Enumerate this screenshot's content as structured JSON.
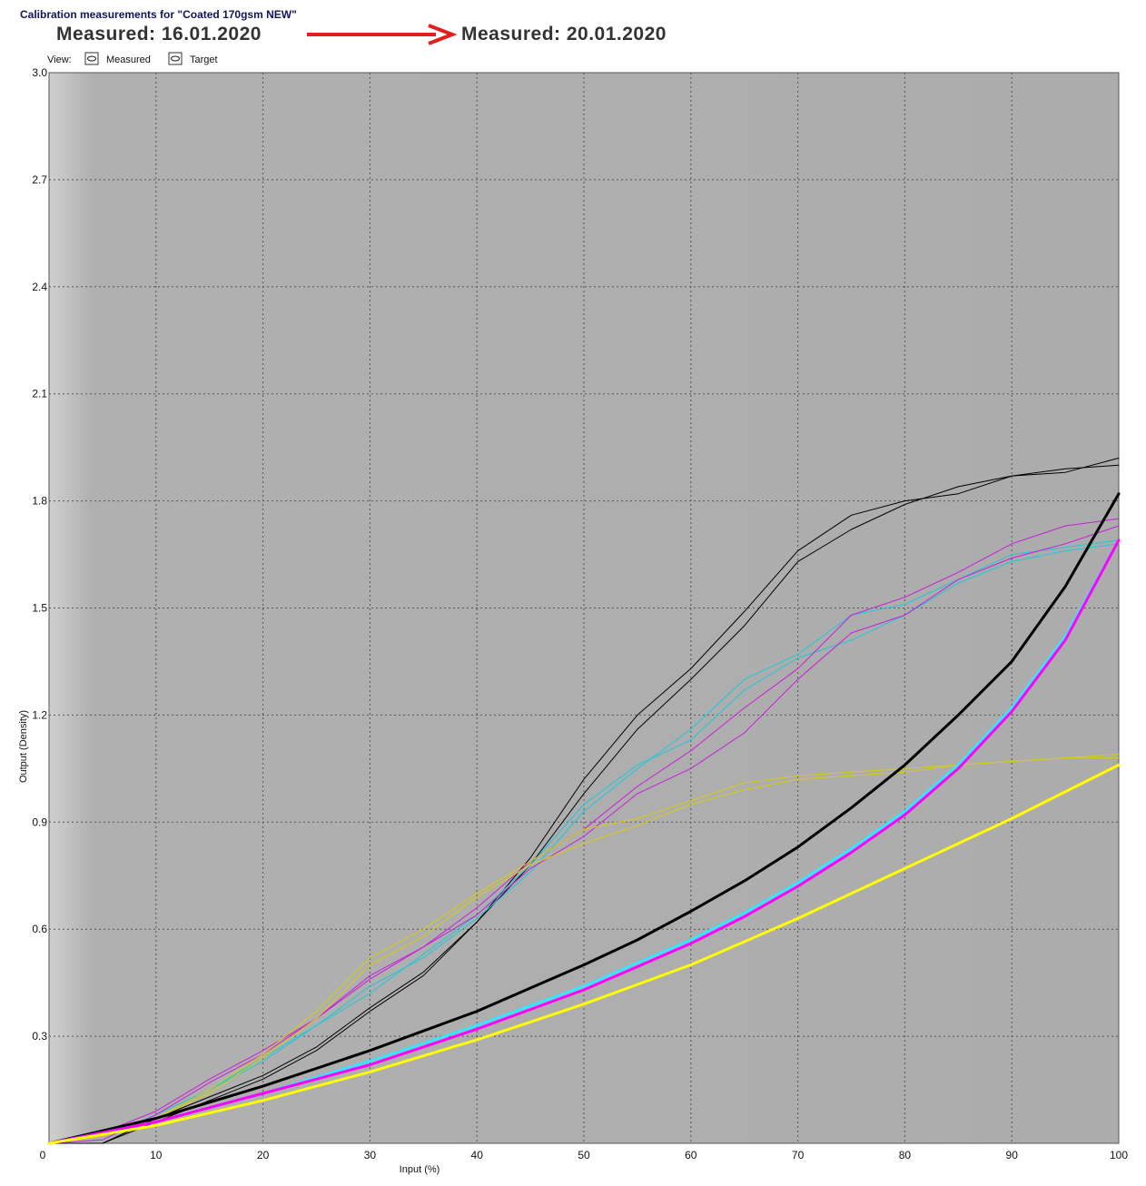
{
  "chart_data": {
    "type": "line",
    "title": "Calibration measurements for \"Coated 170gsm NEW\"",
    "annotations": [
      "Measured: 16.01.2020",
      "Measured: 20.01.2020"
    ],
    "view": {
      "label": "View:",
      "options": [
        "Measured",
        "Target"
      ]
    },
    "x_label": "Input (%)",
    "y_label": "Output (Density)",
    "x": [
      0,
      5,
      10,
      15,
      20,
      25,
      30,
      35,
      40,
      45,
      50,
      55,
      60,
      65,
      70,
      75,
      80,
      85,
      90,
      95,
      100
    ],
    "xlim": [
      0,
      100
    ],
    "ylim": [
      0,
      3
    ],
    "xticks": [
      0,
      10,
      20,
      30,
      40,
      50,
      60,
      70,
      80,
      90,
      100
    ],
    "yticks": [
      0.3,
      0.6,
      0.9,
      1.2,
      1.5,
      1.8,
      2.1,
      2.4,
      2.7,
      {
        "value": 3,
        "label": "3.0"
      }
    ],
    "grid": true,
    "series": [
      {
        "color": "#000000",
        "width": 1,
        "values": [
          0,
          0,
          0.07,
          0.13,
          0.19,
          0.27,
          0.38,
          0.48,
          0.62,
          0.78,
          0.98,
          1.16,
          1.3,
          1.45,
          1.63,
          1.72,
          1.79,
          1.84,
          1.87,
          1.88,
          1.92
        ]
      },
      {
        "color": "#000000",
        "width": 1,
        "values": [
          0,
          0,
          0.06,
          0.12,
          0.18,
          0.26,
          0.37,
          0.47,
          0.62,
          0.8,
          1.02,
          1.2,
          1.33,
          1.49,
          1.66,
          1.76,
          1.8,
          1.82,
          1.87,
          1.89,
          1.9
        ]
      },
      {
        "color": "#1ec8d8",
        "width": 1,
        "values": [
          0,
          0.02,
          0.08,
          0.15,
          0.24,
          0.33,
          0.44,
          0.52,
          0.63,
          0.76,
          0.93,
          1.05,
          1.16,
          1.3,
          1.37,
          1.48,
          1.51,
          1.58,
          1.65,
          1.67,
          1.69
        ]
      },
      {
        "color": "#1ec8d8",
        "width": 1,
        "values": [
          0,
          0.02,
          0.07,
          0.15,
          0.23,
          0.33,
          0.42,
          0.53,
          0.64,
          0.78,
          0.95,
          1.06,
          1.13,
          1.27,
          1.36,
          1.41,
          1.48,
          1.57,
          1.63,
          1.66,
          1.68
        ]
      },
      {
        "color": "#c81ed8",
        "width": 1,
        "values": [
          0,
          0.03,
          0.09,
          0.18,
          0.26,
          0.35,
          0.46,
          0.55,
          0.66,
          0.79,
          0.88,
          1,
          1.1,
          1.22,
          1.33,
          1.48,
          1.53,
          1.6,
          1.68,
          1.73,
          1.75
        ]
      },
      {
        "color": "#c81ed8",
        "width": 1,
        "values": [
          0,
          0.01,
          0.08,
          0.17,
          0.25,
          0.35,
          0.47,
          0.55,
          0.64,
          0.77,
          0.86,
          0.98,
          1.05,
          1.15,
          1.3,
          1.43,
          1.48,
          1.58,
          1.64,
          1.68,
          1.73
        ]
      },
      {
        "color": "#d8cc10",
        "width": 1,
        "values": [
          0,
          0.02,
          0.07,
          0.15,
          0.25,
          0.37,
          0.52,
          0.6,
          0.7,
          0.79,
          0.88,
          0.91,
          0.96,
          1.01,
          1.03,
          1.04,
          1.05,
          1.06,
          1.07,
          1.08,
          1.09
        ]
      },
      {
        "color": "#d8cc10",
        "width": 1,
        "values": [
          0,
          0.02,
          0.07,
          0.14,
          0.24,
          0.35,
          0.5,
          0.58,
          0.69,
          0.78,
          0.84,
          0.89,
          0.95,
          0.99,
          1.02,
          1.03,
          1.04,
          1.06,
          1.07,
          1.08,
          1.08
        ]
      },
      {
        "color": "#000000",
        "width": 3,
        "values": [
          0,
          0.035,
          0.07,
          0.115,
          0.16,
          0.21,
          0.26,
          0.315,
          0.37,
          0.435,
          0.5,
          0.57,
          0.65,
          0.735,
          0.83,
          0.94,
          1.06,
          1.2,
          1.35,
          1.56,
          1.82
        ]
      },
      {
        "color": "#30e8ff",
        "width": 3,
        "values": [
          0,
          0.03,
          0.06,
          0.1,
          0.14,
          0.185,
          0.23,
          0.28,
          0.33,
          0.385,
          0.44,
          0.505,
          0.57,
          0.645,
          0.73,
          0.825,
          0.93,
          1.06,
          1.22,
          1.42,
          1.69
        ]
      },
      {
        "color": "#ff00ff",
        "width": 3,
        "values": [
          0,
          0.03,
          0.06,
          0.1,
          0.14,
          0.18,
          0.22,
          0.27,
          0.32,
          0.375,
          0.43,
          0.495,
          0.56,
          0.635,
          0.72,
          0.815,
          0.92,
          1.05,
          1.21,
          1.41,
          1.69
        ]
      },
      {
        "color": "#ffff00",
        "width": 3,
        "values": [
          0,
          0.025,
          0.05,
          0.085,
          0.12,
          0.16,
          0.2,
          0.245,
          0.29,
          0.34,
          0.39,
          0.445,
          0.5,
          0.565,
          0.63,
          0.7,
          0.77,
          0.84,
          0.91,
          0.985,
          1.06
        ]
      }
    ]
  }
}
